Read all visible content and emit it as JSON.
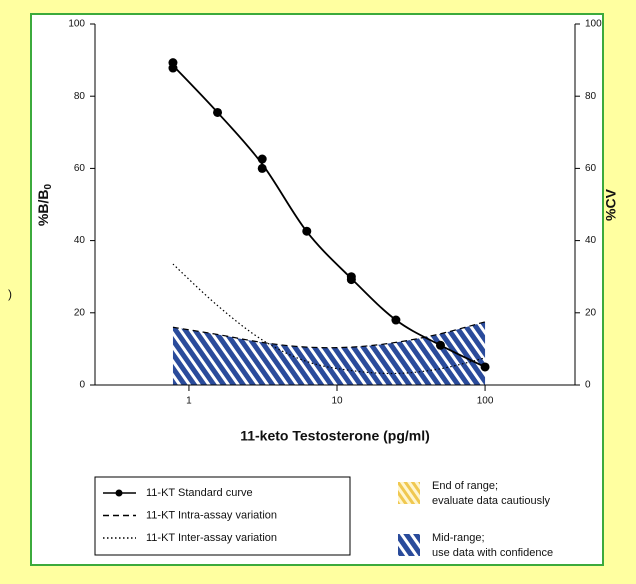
{
  "fragment": ")",
  "chart_data": {
    "type": "line",
    "x_label": "11-keto Testosterone (pg/ml)",
    "y_label": "%B/B",
    "y_label_subscript": "0",
    "y2_label": "%CV",
    "log_x": true,
    "xlim": [
      0.232,
      405
    ],
    "xticks": [
      1,
      10,
      100
    ],
    "ylim": [
      0,
      100
    ],
    "yticks": [
      0,
      20,
      40,
      60,
      80,
      100
    ],
    "y2lim": [
      0,
      100
    ],
    "y2ticks": [
      0,
      20,
      40,
      60,
      80,
      100
    ],
    "series": [
      {
        "name": "11-KT Standard curve",
        "color": "#000000",
        "style": "solid",
        "markers": true,
        "x": [
          0.78,
          1.56,
          3.125,
          6.25,
          12.5,
          25,
          50,
          100
        ],
        "values": [
          88.5,
          75.5,
          61.2,
          42.5,
          29.5,
          18,
          11,
          5
        ],
        "replicates": {
          "x": [
            0.78,
            0.78,
            1.56,
            3.125,
            3.125,
            6.25,
            12.5,
            12.5,
            25,
            50,
            100
          ],
          "values": [
            89.3,
            87.8,
            75.5,
            62.6,
            60,
            42.6,
            30,
            29.2,
            18,
            11,
            5
          ]
        }
      },
      {
        "name": "11-KT Intra-assay variation",
        "color": "#000000",
        "style": "dashed",
        "axis": "y2",
        "x": [
          0.78,
          1.56,
          3.125,
          6.25,
          12.5,
          25,
          50,
          100
        ],
        "values": [
          16,
          14,
          11.8,
          10.5,
          10.5,
          11.8,
          14.2,
          17.5
        ]
      },
      {
        "name": "11-KT Inter-assay variation",
        "color": "#000000",
        "style": "dotted",
        "axis": "y2",
        "x": [
          0.78,
          1.56,
          3.125,
          6.25,
          12.5,
          25,
          50,
          100
        ],
        "values": [
          33.5,
          22,
          12.5,
          6.5,
          4,
          3.2,
          4.5,
          7.5
        ]
      }
    ],
    "regions": [
      {
        "label": [
          "End of range;",
          "evaluate data cautiously"
        ],
        "color": "#f0c850"
      },
      {
        "label": [
          "Mid-range;",
          "use data with confidence"
        ],
        "color": "#2a4b9b"
      }
    ]
  }
}
